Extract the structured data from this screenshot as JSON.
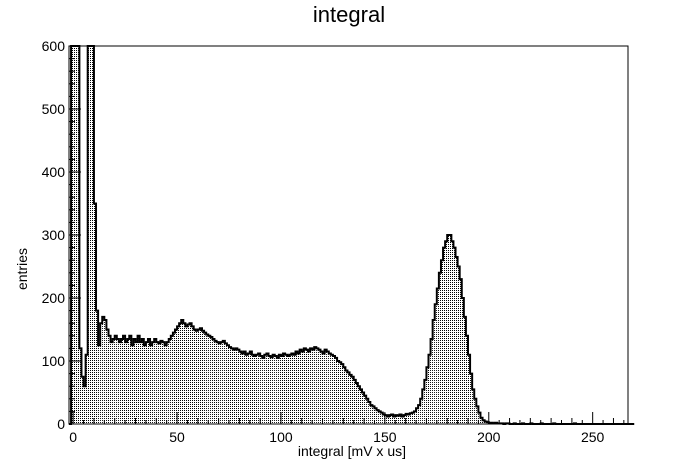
{
  "chart_data": {
    "type": "bar",
    "title": "integral",
    "xlabel": "integral  [mV x us]",
    "ylabel": "entries",
    "xlim": [
      -2,
      267
    ],
    "ylim": [
      0,
      600
    ],
    "x_major_ticks": [
      0,
      50,
      100,
      150,
      200,
      250
    ],
    "x_tick_labels": [
      "0",
      "50",
      "100",
      "150",
      "200",
      "250"
    ],
    "y_major_ticks": [
      0,
      100,
      200,
      300,
      400,
      500,
      600
    ],
    "y_tick_labels": [
      "0",
      "100",
      "200",
      "300",
      "400",
      "500",
      "600"
    ],
    "bin_width": 1,
    "bin_start": -2,
    "values": [
      0,
      600,
      600,
      600,
      600,
      120,
      75,
      60,
      110,
      600,
      600,
      600,
      350,
      180,
      125,
      160,
      170,
      165,
      150,
      140,
      130,
      135,
      140,
      135,
      130,
      135,
      140,
      130,
      135,
      140,
      125,
      135,
      130,
      140,
      130,
      135,
      125,
      130,
      135,
      125,
      130,
      135,
      130,
      128,
      132,
      130,
      125,
      130,
      135,
      140,
      145,
      150,
      155,
      160,
      165,
      160,
      155,
      158,
      160,
      155,
      150,
      148,
      150,
      152,
      148,
      145,
      142,
      140,
      138,
      135,
      132,
      130,
      128,
      130,
      132,
      128,
      125,
      122,
      120,
      118,
      120,
      118,
      115,
      112,
      115,
      110,
      112,
      115,
      110,
      108,
      110,
      112,
      108,
      105,
      110,
      112,
      108,
      106,
      110,
      108,
      105,
      110,
      108,
      112,
      110,
      108,
      110,
      112,
      110,
      115,
      112,
      118,
      115,
      120,
      118,
      115,
      120,
      118,
      122,
      120,
      118,
      115,
      112,
      118,
      115,
      112,
      110,
      108,
      105,
      100,
      98,
      95,
      90,
      85,
      82,
      78,
      75,
      70,
      65,
      60,
      55,
      50,
      45,
      40,
      35,
      30,
      28,
      25,
      22,
      20,
      18,
      15,
      14,
      12,
      14,
      15,
      12,
      14,
      13,
      15,
      12,
      14,
      16,
      15,
      17,
      18,
      20,
      25,
      30,
      40,
      55,
      70,
      90,
      110,
      135,
      165,
      190,
      215,
      240,
      260,
      280,
      290,
      300,
      300,
      290,
      280,
      265,
      250,
      230,
      200,
      170,
      140,
      110,
      80,
      55,
      40,
      28,
      18,
      10,
      6,
      4,
      3,
      2,
      2,
      1,
      2,
      1,
      1,
      1,
      0,
      1,
      1,
      0,
      0,
      1,
      0,
      0,
      0,
      1,
      0,
      0,
      0,
      1,
      0,
      0,
      0,
      0,
      1,
      0,
      0,
      0,
      0,
      0,
      1,
      0,
      0,
      0,
      0,
      0,
      0,
      0,
      0,
      0,
      1,
      0,
      0,
      0,
      0,
      0,
      0,
      0,
      0,
      0,
      0,
      0,
      0,
      0,
      0,
      0,
      0,
      0,
      0,
      0,
      0,
      0,
      0,
      0,
      0,
      0,
      0,
      0,
      0
    ],
    "fill": "dotted",
    "grid": false,
    "legend": "none",
    "colors": {
      "line": "#000000",
      "fill": "#000000",
      "background": "#ffffff"
    }
  }
}
